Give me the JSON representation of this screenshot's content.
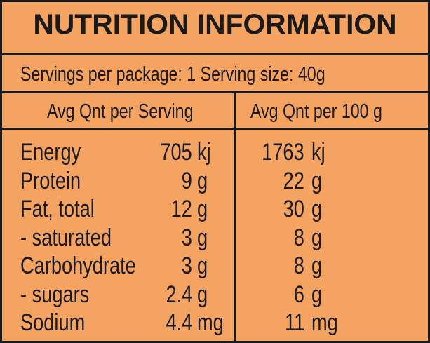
{
  "title": "NUTRITION INFORMATION",
  "servings_line": "Servings per package: 1 Serving size:  40g",
  "columns": {
    "per_serving": "Avg Qnt per Serving",
    "per_100g": "Avg Qnt per 100 g"
  },
  "rows": [
    {
      "name": "Energy",
      "serving_value": "705",
      "serving_unit": "kj",
      "per100_value": "1763",
      "per100_unit": "kj"
    },
    {
      "name": "Protein",
      "serving_value": "9",
      "serving_unit": "g",
      "per100_value": "22",
      "per100_unit": "g"
    },
    {
      "name": "Fat, total",
      "serving_value": "12",
      "serving_unit": "g",
      "per100_value": "30",
      "per100_unit": "g"
    },
    {
      "name": "- saturated",
      "serving_value": "3",
      "serving_unit": "g",
      "per100_value": "8",
      "per100_unit": "g"
    },
    {
      "name": "Carbohydrate",
      "serving_value": "3",
      "serving_unit": "g",
      "per100_value": "8",
      "per100_unit": "g"
    },
    {
      "name": "- sugars",
      "serving_value": "2.4",
      "serving_unit": "g",
      "per100_value": "6",
      "per100_unit": "g"
    },
    {
      "name": "Sodium",
      "serving_value": "4.4",
      "serving_unit": "mg",
      "per100_value": "11",
      "per100_unit": "mg"
    }
  ],
  "colors": {
    "background": "#f4a460",
    "ink": "#1a1a1a"
  }
}
